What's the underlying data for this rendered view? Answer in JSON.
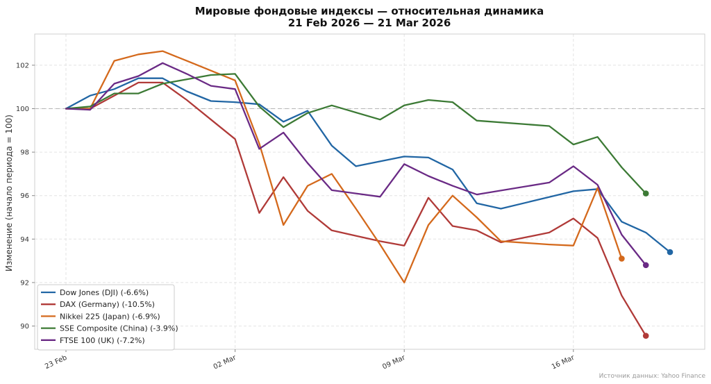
{
  "chart_data": {
    "type": "line",
    "title": "Мировые фондовые индексы — относительная динамика",
    "subtitle": "21 Feb 2026 — 21 Mar 2026",
    "ylabel": "Изменение (начало периода = 100)",
    "xlabel": "",
    "ylim": [
      89,
      103.3
    ],
    "yticks": [
      90,
      92,
      94,
      96,
      98,
      100,
      102
    ],
    "x_range": [
      "2026-02-23",
      "2026-03-21"
    ],
    "xticks": [
      {
        "date": "2026-02-23",
        "label": "23 Feb"
      },
      {
        "date": "2026-03-02",
        "label": "02 Mar"
      },
      {
        "date": "2026-03-09",
        "label": "09 Mar"
      },
      {
        "date": "2026-03-16",
        "label": "16 Mar"
      }
    ],
    "reference_line": 100,
    "grid": true,
    "legend_position": "lower-left",
    "source_note": "Источник данных: Yahoo Finance",
    "series": [
      {
        "name": "Dow Jones (DJI)",
        "legend_label": "Dow Jones (DJI)  (-6.6%)",
        "color": "#2166a4",
        "points": [
          [
            "2026-02-23",
            100.0
          ],
          [
            "2026-02-24",
            100.6
          ],
          [
            "2026-02-25",
            100.9
          ],
          [
            "2026-02-26",
            101.4
          ],
          [
            "2026-02-27",
            101.4
          ],
          [
            "2026-02-28",
            100.8
          ],
          [
            "2026-03-01",
            100.35
          ],
          [
            "2026-03-02",
            100.3
          ],
          [
            "2026-03-03",
            100.2
          ],
          [
            "2026-03-04",
            99.4
          ],
          [
            "2026-03-05",
            99.9
          ],
          [
            "2026-03-06",
            98.3
          ],
          [
            "2026-03-07",
            97.35
          ],
          [
            "2026-03-09",
            97.8
          ],
          [
            "2026-03-10",
            97.75
          ],
          [
            "2026-03-11",
            97.2
          ],
          [
            "2026-03-12",
            95.65
          ],
          [
            "2026-03-13",
            95.4
          ],
          [
            "2026-03-16",
            96.2
          ],
          [
            "2026-03-17",
            96.3
          ],
          [
            "2026-03-18",
            94.8
          ],
          [
            "2026-03-19",
            94.3
          ],
          [
            "2026-03-20",
            93.4
          ]
        ]
      },
      {
        "name": "DAX (Germany)",
        "legend_label": "DAX (Germany)  (-10.5%)",
        "color": "#b03a38",
        "points": [
          [
            "2026-02-23",
            100.0
          ],
          [
            "2026-02-24",
            100.0
          ],
          [
            "2026-02-25",
            100.6
          ],
          [
            "2026-02-26",
            101.2
          ],
          [
            "2026-02-27",
            101.2
          ],
          [
            "2026-02-28",
            100.4
          ],
          [
            "2026-03-01",
            99.5
          ],
          [
            "2026-03-02",
            98.6
          ],
          [
            "2026-03-03",
            95.2
          ],
          [
            "2026-03-04",
            96.85
          ],
          [
            "2026-03-05",
            95.3
          ],
          [
            "2026-03-06",
            94.4
          ],
          [
            "2026-03-07",
            94.15
          ],
          [
            "2026-03-08",
            93.9
          ],
          [
            "2026-03-09",
            93.7
          ],
          [
            "2026-03-10",
            95.9
          ],
          [
            "2026-03-11",
            94.6
          ],
          [
            "2026-03-12",
            94.4
          ],
          [
            "2026-03-13",
            93.85
          ],
          [
            "2026-03-15",
            94.3
          ],
          [
            "2026-03-16",
            94.95
          ],
          [
            "2026-03-17",
            94.05
          ],
          [
            "2026-03-18",
            91.4
          ],
          [
            "2026-03-19",
            89.55
          ]
        ]
      },
      {
        "name": "Nikkei 225 (Japan)",
        "legend_label": "Nikkei 225 (Japan)  (-6.9%)",
        "color": "#d4691c",
        "points": [
          [
            "2026-02-23",
            100.0
          ],
          [
            "2026-02-24",
            100.0
          ],
          [
            "2026-02-25",
            102.2
          ],
          [
            "2026-02-26",
            102.5
          ],
          [
            "2026-02-27",
            102.65
          ],
          [
            "2026-02-28",
            102.2
          ],
          [
            "2026-03-01",
            101.75
          ],
          [
            "2026-03-02",
            101.3
          ],
          [
            "2026-03-03",
            98.4
          ],
          [
            "2026-03-04",
            94.65
          ],
          [
            "2026-03-05",
            96.45
          ],
          [
            "2026-03-06",
            97.0
          ],
          [
            "2026-03-07",
            95.4
          ],
          [
            "2026-03-08",
            93.75
          ],
          [
            "2026-03-09",
            92.0
          ],
          [
            "2026-03-10",
            94.65
          ],
          [
            "2026-03-11",
            96.0
          ],
          [
            "2026-03-12",
            95.0
          ],
          [
            "2026-03-13",
            93.9
          ],
          [
            "2026-03-15",
            93.75
          ],
          [
            "2026-03-16",
            93.7
          ],
          [
            "2026-03-17",
            96.35
          ],
          [
            "2026-03-18",
            93.1
          ]
        ]
      },
      {
        "name": "SSE Composite (China)",
        "legend_label": "SSE Composite (China)  (-3.9%)",
        "color": "#3c7a35",
        "points": [
          [
            "2026-02-23",
            100.0
          ],
          [
            "2026-02-24",
            100.1
          ],
          [
            "2026-02-25",
            100.7
          ],
          [
            "2026-02-26",
            100.7
          ],
          [
            "2026-02-27",
            101.15
          ],
          [
            "2026-02-28",
            101.35
          ],
          [
            "2026-03-01",
            101.55
          ],
          [
            "2026-03-02",
            101.6
          ],
          [
            "2026-03-03",
            100.1
          ],
          [
            "2026-03-04",
            99.15
          ],
          [
            "2026-03-05",
            99.8
          ],
          [
            "2026-03-06",
            100.15
          ],
          [
            "2026-03-08",
            99.5
          ],
          [
            "2026-03-09",
            100.15
          ],
          [
            "2026-03-10",
            100.4
          ],
          [
            "2026-03-11",
            100.3
          ],
          [
            "2026-03-12",
            99.45
          ],
          [
            "2026-03-15",
            99.2
          ],
          [
            "2026-03-16",
            98.35
          ],
          [
            "2026-03-17",
            98.7
          ],
          [
            "2026-03-18",
            97.3
          ],
          [
            "2026-03-19",
            96.1
          ]
        ]
      },
      {
        "name": "FTSE 100 (UK)",
        "legend_label": "FTSE 100 (UK)  (-7.2%)",
        "color": "#6a2a85",
        "points": [
          [
            "2026-02-23",
            100.0
          ],
          [
            "2026-02-24",
            99.95
          ],
          [
            "2026-02-25",
            101.15
          ],
          [
            "2026-02-26",
            101.5
          ],
          [
            "2026-02-27",
            102.1
          ],
          [
            "2026-02-28",
            101.6
          ],
          [
            "2026-03-01",
            101.05
          ],
          [
            "2026-03-02",
            100.9
          ],
          [
            "2026-03-03",
            98.15
          ],
          [
            "2026-03-04",
            98.9
          ],
          [
            "2026-03-05",
            97.5
          ],
          [
            "2026-03-06",
            96.25
          ],
          [
            "2026-03-08",
            95.95
          ],
          [
            "2026-03-09",
            97.45
          ],
          [
            "2026-03-10",
            96.9
          ],
          [
            "2026-03-11",
            96.45
          ],
          [
            "2026-03-12",
            96.05
          ],
          [
            "2026-03-15",
            96.6
          ],
          [
            "2026-03-16",
            97.35
          ],
          [
            "2026-03-17",
            96.5
          ],
          [
            "2026-03-18",
            94.2
          ],
          [
            "2026-03-19",
            92.8
          ]
        ]
      }
    ]
  }
}
